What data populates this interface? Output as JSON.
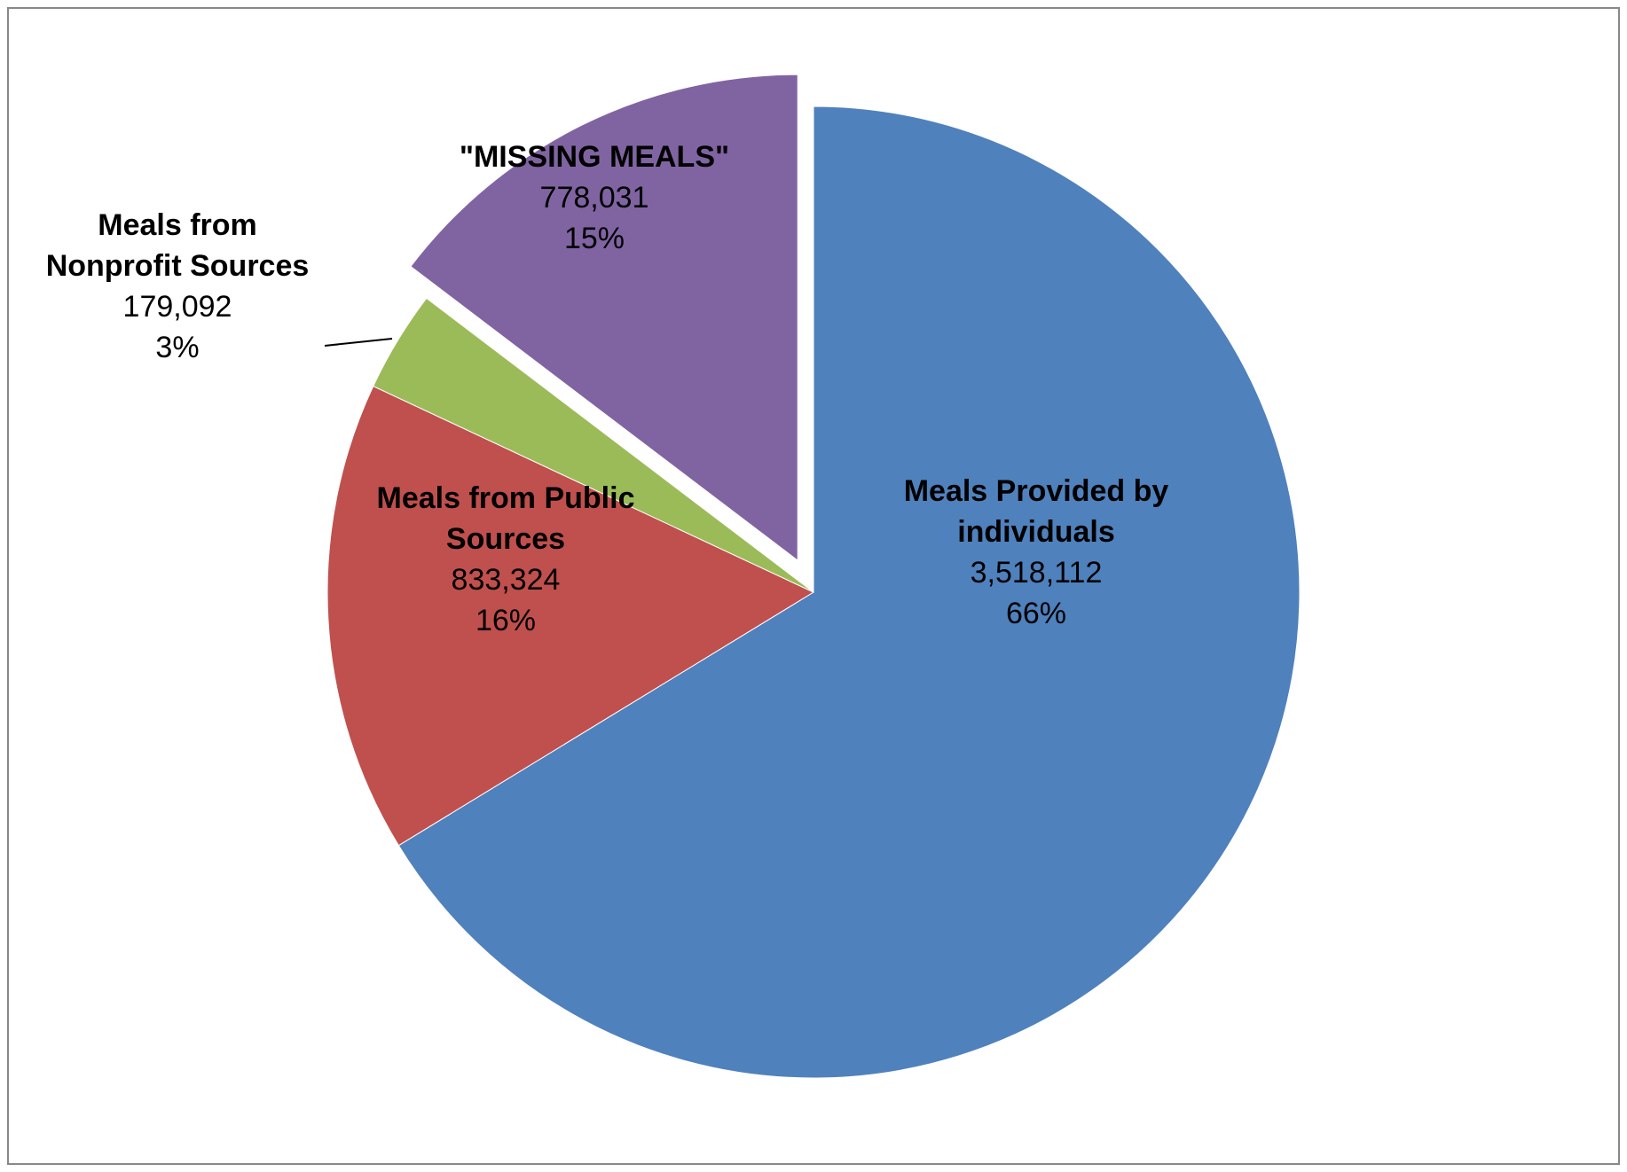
{
  "chart_data": {
    "type": "pie",
    "title": "",
    "legend": "none",
    "slices": [
      {
        "name_lines": [
          "Meals Provided by",
          "individuals"
        ],
        "value": 3518112,
        "value_label": "3,518,112",
        "percent_label": "66%",
        "color": "#4F81BD",
        "exploded": false
      },
      {
        "name_lines": [
          "Meals from Public",
          "Sources"
        ],
        "value": 833324,
        "value_label": "833,324",
        "percent_label": "16%",
        "color": "#C0504D",
        "exploded": false
      },
      {
        "name_lines": [
          "Meals from",
          "Nonprofit Sources"
        ],
        "value": 179092,
        "value_label": "179,092",
        "percent_label": "3%",
        "color": "#9BBB59",
        "exploded": false
      },
      {
        "name_lines": [
          "\"MISSING MEALS\""
        ],
        "value": 778031,
        "value_label": "778,031",
        "percent_label": "15%",
        "color": "#8064A2",
        "exploded": true
      }
    ]
  }
}
